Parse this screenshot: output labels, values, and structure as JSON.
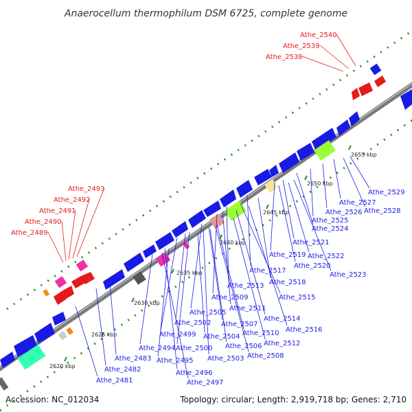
{
  "title": "Anaerocellum thermophilum DSM 6725, complete genome",
  "accession": "Accession: NC_012034",
  "summary": "Topology: circular; Length: 2,919,718 bp; Genes: 2,710",
  "colors": {
    "backbone": "#8c8c8c",
    "forward_gene": "#1a1ae6",
    "label_blue": "#1a1ae6",
    "label_red": "#e61a1a",
    "tick": "#2a8a2a"
  },
  "kbp_ticks": [
    "2620 kbp",
    "2625 kbp",
    "2630 kbp",
    "2635 kbp",
    "2640 kbp",
    "2645 kbp",
    "2650 kbp",
    "2655 kbp"
  ],
  "red_labels": [
    "Athe_2540",
    "Athe_2539",
    "Athe_2538",
    "Athe_2493",
    "Athe_2492",
    "Athe_2491",
    "Athe_2490",
    "Athe_2489"
  ],
  "blue_labels": [
    "Athe_2529",
    "Athe_2527",
    "Athe_2528",
    "Athe_2526",
    "Athe_2525",
    "Athe_2524",
    "Athe_2521",
    "Athe_2519",
    "Athe_2522",
    "Athe_2520",
    "Athe_2523",
    "Athe_2517",
    "Athe_2518",
    "Athe_2513",
    "Athe_2515",
    "Athe_2509",
    "Athe_2511",
    "Athe_2505",
    "Athe_2514",
    "Athe_2507",
    "Athe_2516",
    "Athe_2502",
    "Athe_2504",
    "Athe_2510",
    "Athe_2499",
    "Athe_2506",
    "Athe_2512",
    "Athe_2494",
    "Athe_2500",
    "Athe_2508",
    "Athe_2483",
    "Athe_2503",
    "Athe_2495",
    "Athe_2482",
    "Athe_2496",
    "Athe_2481",
    "Athe_2497"
  ]
}
